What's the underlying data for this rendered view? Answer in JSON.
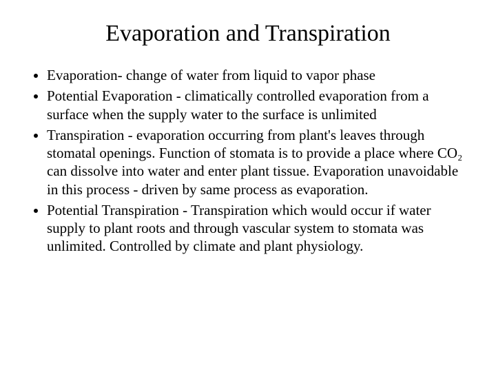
{
  "title": "Evaporation and Transpiration",
  "title_fontsize": 34,
  "body_fontsize": 21,
  "text_color": "#000000",
  "background_color": "#ffffff",
  "bullets": [
    "Evaporation- change of water from liquid to vapor phase",
    "Potential Evaporation - climatically controlled evaporation from a surface when the supply water to the surface is unlimited",
    "Transpiration - evaporation occurring from plant's leaves through stomatal openings.  Function of stomata is to provide a place where CO₂ can dissolve into water and enter plant tissue.  Evaporation unavoidable in this process - driven by same process as evaporation.",
    "Potential Transpiration - Transpiration which would occur if water supply to plant roots and through vascular system to stomata was unlimited.  Controlled by climate and plant physiology."
  ]
}
